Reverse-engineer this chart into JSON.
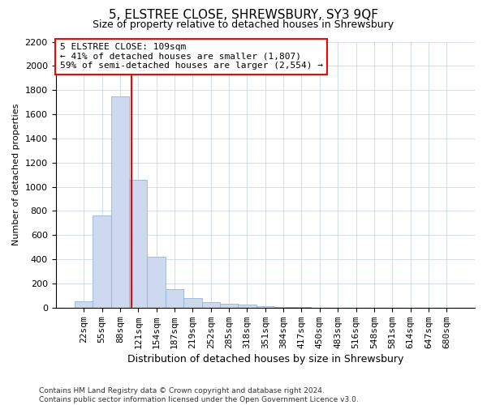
{
  "title": "5, ELSTREE CLOSE, SHREWSBURY, SY3 9QF",
  "subtitle": "Size of property relative to detached houses in Shrewsbury",
  "xlabel": "Distribution of detached houses by size in Shrewsbury",
  "ylabel": "Number of detached properties",
  "footer_line1": "Contains HM Land Registry data © Crown copyright and database right 2024.",
  "footer_line2": "Contains public sector information licensed under the Open Government Licence v3.0.",
  "bar_labels": [
    "22sqm",
    "55sqm",
    "88sqm",
    "121sqm",
    "154sqm",
    "187sqm",
    "219sqm",
    "252sqm",
    "285sqm",
    "318sqm",
    "351sqm",
    "384sqm",
    "417sqm",
    "450sqm",
    "483sqm",
    "516sqm",
    "548sqm",
    "581sqm",
    "614sqm",
    "647sqm",
    "680sqm"
  ],
  "bar_values": [
    50,
    760,
    1750,
    1060,
    420,
    155,
    80,
    45,
    35,
    25,
    10,
    5,
    5,
    0,
    0,
    0,
    0,
    0,
    0,
    0,
    0
  ],
  "bar_color": "#ccd9ee",
  "bar_edge_color": "#8aaad0",
  "vline_pos": 2.64,
  "ylim": [
    0,
    2200
  ],
  "yticks": [
    0,
    200,
    400,
    600,
    800,
    1000,
    1200,
    1400,
    1600,
    1800,
    2000,
    2200
  ],
  "annotation_text_line1": "5 ELSTREE CLOSE: 109sqm",
  "annotation_text_line2": "← 41% of detached houses are smaller (1,807)",
  "annotation_text_line3": "59% of semi-detached houses are larger (2,554) →",
  "annotation_box_color": "white",
  "annotation_box_edge": "red",
  "vline_color": "red",
  "title_fontsize": 11,
  "subtitle_fontsize": 9,
  "axis_label_fontsize": 8,
  "tick_fontsize": 8,
  "annotation_fontsize": 8,
  "footer_fontsize": 6.5,
  "figsize": [
    6.0,
    5.0
  ],
  "dpi": 100
}
